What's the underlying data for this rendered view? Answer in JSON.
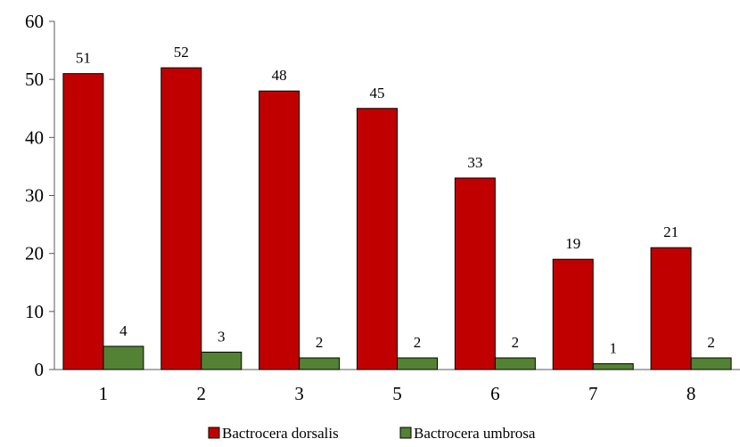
{
  "chart_data": {
    "type": "bar",
    "title": "",
    "xlabel": "",
    "ylabel": "",
    "categories": [
      "1",
      "2",
      "3",
      "5",
      "6",
      "7",
      "8"
    ],
    "series": [
      {
        "name": "Bactrocera dorsalis",
        "color": "#c00000",
        "values": [
          51,
          52,
          48,
          45,
          33,
          19,
          21
        ]
      },
      {
        "name": "Bactrocera umbrosa",
        "color": "#548235",
        "values": [
          4,
          3,
          2,
          2,
          2,
          1,
          2
        ]
      }
    ],
    "ylim": [
      0,
      60
    ],
    "yticks": [
      0,
      10,
      20,
      30,
      40,
      50,
      60
    ],
    "grid": false,
    "data_labels": true,
    "legend": "bottom"
  }
}
